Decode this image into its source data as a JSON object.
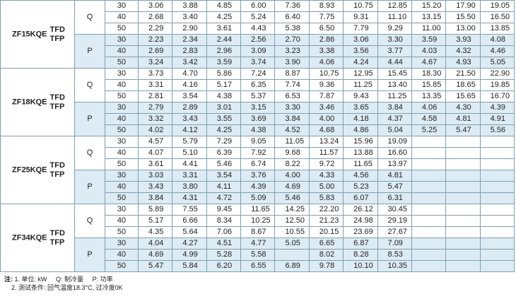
{
  "table": {
    "groups": [
      {
        "model": "ZF15KQE",
        "variants": [
          "TFD",
          "TFP"
        ],
        "sections": [
          {
            "label": "Q",
            "rows": [
              {
                "temp": "30",
                "values": [
                  "3.06",
                  "3.88",
                  "4.85",
                  "6.00",
                  "7.36",
                  "8.93",
                  "10.75",
                  "12.85",
                  "15.20",
                  "17.90",
                  "19.05"
                ]
              },
              {
                "temp": "40",
                "values": [
                  "2.68",
                  "3.40",
                  "4.25",
                  "5.24",
                  "6.40",
                  "7.75",
                  "9.31",
                  "11.10",
                  "13.15",
                  "15.50",
                  "16.50"
                ]
              },
              {
                "temp": "50",
                "values": [
                  "2.29",
                  "2.90",
                  "3.61",
                  "4.43",
                  "5.38",
                  "6.50",
                  "7.79",
                  "9.29",
                  "11.00",
                  "13.00",
                  "13.85"
                ]
              }
            ]
          },
          {
            "label": "P",
            "rows": [
              {
                "temp": "30",
                "values": [
                  "2.23",
                  "2.34",
                  "2.44",
                  "2.56",
                  "2.70",
                  "2.86",
                  "3.06",
                  "3.30",
                  "3.59",
                  "3.93",
                  "4.08"
                ]
              },
              {
                "temp": "40",
                "values": [
                  "2.69",
                  "2.83",
                  "2.96",
                  "3.09",
                  "3.23",
                  "3.38",
                  "3.56",
                  "3.77",
                  "4.03",
                  "4.32",
                  "4.46"
                ]
              },
              {
                "temp": "50",
                "values": [
                  "3.24",
                  "3.42",
                  "3.59",
                  "3.74",
                  "3.90",
                  "4.06",
                  "4.24",
                  "4.44",
                  "4.67",
                  "4.93",
                  "5.05"
                ]
              }
            ]
          }
        ]
      },
      {
        "model": "ZF18KQE",
        "variants": [
          "TFD",
          "TFP"
        ],
        "sections": [
          {
            "label": "Q",
            "rows": [
              {
                "temp": "30",
                "values": [
                  "3.73",
                  "4.70",
                  "5.86",
                  "7.24",
                  "8.87",
                  "10.75",
                  "12.95",
                  "15.45",
                  "18.30",
                  "21.50",
                  "22.90"
                ]
              },
              {
                "temp": "40",
                "values": [
                  "3.31",
                  "4.16",
                  "5.17",
                  "6.35",
                  "7.74",
                  "9.36",
                  "11.25",
                  "13.40",
                  "15.85",
                  "18.65",
                  "19.85"
                ]
              },
              {
                "temp": "50",
                "values": [
                  "2.81",
                  "3.54",
                  "4.38",
                  "5.37",
                  "6.53",
                  "7.87",
                  "9.43",
                  "11.25",
                  "13.35",
                  "15.65",
                  "16.70"
                ]
              }
            ]
          },
          {
            "label": "P",
            "rows": [
              {
                "temp": "30",
                "values": [
                  "2.79",
                  "2.89",
                  "3.01",
                  "3.15",
                  "3.30",
                  "3.46",
                  "3.65",
                  "3.84",
                  "4.06",
                  "4.30",
                  "4.39"
                ]
              },
              {
                "temp": "40",
                "values": [
                  "3.32",
                  "3.43",
                  "3.55",
                  "3.69",
                  "3.84",
                  "4.00",
                  "4.18",
                  "4.37",
                  "4.58",
                  "4.81",
                  "4.91"
                ]
              },
              {
                "temp": "50",
                "values": [
                  "4.02",
                  "4.12",
                  "4.25",
                  "4.38",
                  "4.52",
                  "4.68",
                  "4.86",
                  "5.04",
                  "5.25",
                  "5.47",
                  "5.56"
                ]
              }
            ]
          }
        ]
      },
      {
        "model": "ZF25KQE",
        "variants": [
          "TFD",
          "TFP"
        ],
        "sections": [
          {
            "label": "Q",
            "rows": [
              {
                "temp": "30",
                "values": [
                  "4.57",
                  "5.79",
                  "7.29",
                  "9.05",
                  "11.05",
                  "13.24",
                  "15.96",
                  "19.09",
                  null,
                  null,
                  null
                ]
              },
              {
                "temp": "40",
                "values": [
                  "4.07",
                  "5.10",
                  "6.39",
                  "7.92",
                  "9.68",
                  "11.57",
                  "13.88",
                  "16.60",
                  null,
                  null,
                  null
                ]
              },
              {
                "temp": "50",
                "values": [
                  "3.61",
                  "4.41",
                  "5.46",
                  "6.74",
                  "8.22",
                  "9.72",
                  "11.65",
                  "13.97",
                  null,
                  null,
                  null
                ]
              }
            ]
          },
          {
            "label": "P",
            "rows": [
              {
                "temp": "30",
                "values": [
                  "3.03",
                  "3.31",
                  "3.54",
                  "3.76",
                  "4.00",
                  "4.33",
                  "4.56",
                  "4.81",
                  null,
                  null,
                  null
                ]
              },
              {
                "temp": "40",
                "values": [
                  "3.43",
                  "3.80",
                  "4.11",
                  "4.39",
                  "4.69",
                  "5.00",
                  "5.23",
                  "5.47",
                  null,
                  null,
                  null
                ]
              },
              {
                "temp": "50",
                "values": [
                  "3.84",
                  "4.31",
                  "4.72",
                  "5.09",
                  "5.46",
                  "5.83",
                  "6.07",
                  "6.31",
                  null,
                  null,
                  null
                ]
              }
            ]
          }
        ]
      },
      {
        "model": "ZF34KQE",
        "variants": [
          "TFD",
          "TFP"
        ],
        "sections": [
          {
            "label": "Q",
            "rows": [
              {
                "temp": "30",
                "values": [
                  "5.89",
                  "7.55",
                  "9.45",
                  "11.65",
                  "14.25",
                  "22.20",
                  "26.12",
                  "30.45",
                  null,
                  null,
                  null
                ]
              },
              {
                "temp": "40",
                "values": [
                  "5.17",
                  "6.66",
                  "8.34",
                  "10.25",
                  "12.50",
                  "21.23",
                  "24.98",
                  "29.19",
                  null,
                  null,
                  null
                ]
              },
              {
                "temp": "50",
                "values": [
                  "4.35",
                  "5.64",
                  "7.06",
                  "8.67",
                  "10.55",
                  "20.15",
                  "23.69",
                  "27.67",
                  null,
                  null,
                  null
                ]
              }
            ]
          },
          {
            "label": "P",
            "rows": [
              {
                "temp": "30",
                "values": [
                  "4.04",
                  "4.27",
                  "4.51",
                  "4.77",
                  "5.05",
                  "6.65",
                  "6.87",
                  "7.09",
                  null,
                  null,
                  null
                ]
              },
              {
                "temp": "40",
                "values": [
                  "4.69",
                  "4.99",
                  "5.28",
                  "5.58",
                  null,
                  "8.02",
                  "8.28",
                  "8.53",
                  null,
                  null,
                  null
                ]
              },
              {
                "temp": "50",
                "values": [
                  "5.47",
                  "5.84",
                  "6.20",
                  "6.55",
                  "6.89",
                  "9.78",
                  "10.10",
                  "10.35",
                  null,
                  null,
                  null
                ]
              }
            ]
          }
        ]
      }
    ]
  },
  "notes": {
    "prefix": "注:",
    "line1": [
      "1. 单位: kW",
      "Q: 制冷量",
      "P: 功率"
    ],
    "line2": "2. 测试条件: 回气温度18.3°C, 过冷度0K"
  }
}
